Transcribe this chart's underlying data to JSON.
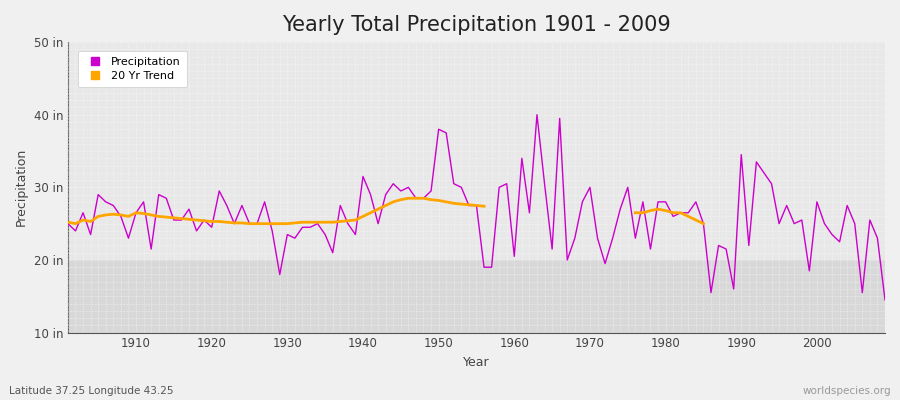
{
  "title": "Yearly Total Precipitation 1901 - 2009",
  "xlabel": "Year",
  "ylabel": "Precipitation",
  "subtitle": "Latitude 37.25 Longitude 43.25",
  "watermark": "worldspecies.org",
  "years": [
    1901,
    1902,
    1903,
    1904,
    1905,
    1906,
    1907,
    1908,
    1909,
    1910,
    1911,
    1912,
    1913,
    1914,
    1915,
    1916,
    1917,
    1918,
    1919,
    1920,
    1921,
    1922,
    1923,
    1924,
    1925,
    1926,
    1927,
    1928,
    1929,
    1930,
    1931,
    1932,
    1933,
    1934,
    1935,
    1936,
    1937,
    1938,
    1939,
    1940,
    1941,
    1942,
    1943,
    1944,
    1945,
    1946,
    1947,
    1948,
    1949,
    1950,
    1951,
    1952,
    1953,
    1954,
    1955,
    1956,
    1957,
    1958,
    1959,
    1960,
    1961,
    1962,
    1963,
    1964,
    1965,
    1966,
    1967,
    1968,
    1969,
    1970,
    1971,
    1972,
    1973,
    1974,
    1975,
    1976,
    1977,
    1978,
    1979,
    1980,
    1981,
    1982,
    1983,
    1984,
    1985,
    1986,
    1987,
    1988,
    1989,
    1990,
    1991,
    1992,
    1993,
    1994,
    1995,
    1996,
    1997,
    1998,
    1999,
    2000,
    2001,
    2002,
    2003,
    2004,
    2005,
    2006,
    2007,
    2008,
    2009
  ],
  "precipitation": [
    25.0,
    24.0,
    26.5,
    23.5,
    29.0,
    28.0,
    27.5,
    26.0,
    23.0,
    26.5,
    28.0,
    21.5,
    29.0,
    28.5,
    25.5,
    25.5,
    27.0,
    24.0,
    25.5,
    24.5,
    29.5,
    27.5,
    25.0,
    27.5,
    25.0,
    25.0,
    28.0,
    24.0,
    18.0,
    23.5,
    23.0,
    24.5,
    24.5,
    25.0,
    23.5,
    21.0,
    27.5,
    25.0,
    23.5,
    31.5,
    29.0,
    25.0,
    29.0,
    30.5,
    29.5,
    30.0,
    28.5,
    28.5,
    29.5,
    38.0,
    37.5,
    30.5,
    30.0,
    27.5,
    27.5,
    19.0,
    19.0,
    30.0,
    30.5,
    20.5,
    34.0,
    26.5,
    40.0,
    30.5,
    21.5,
    39.5,
    20.0,
    23.0,
    28.0,
    30.0,
    23.0,
    19.5,
    23.0,
    27.0,
    30.0,
    23.0,
    28.0,
    21.5,
    28.0,
    28.0,
    26.0,
    26.5,
    26.5,
    28.0,
    25.0,
    15.5,
    22.0,
    21.5,
    16.0,
    34.5,
    22.0,
    33.5,
    32.0,
    30.5,
    25.0,
    27.5,
    25.0,
    25.5,
    18.5,
    28.0,
    25.0,
    23.5,
    22.5,
    27.5,
    25.0,
    15.5,
    25.5,
    23.0,
    14.5
  ],
  "trend_years_1": [
    1901,
    1902,
    1903,
    1904,
    1905,
    1906,
    1907,
    1908,
    1909,
    1910,
    1911,
    1912,
    1913,
    1914,
    1915,
    1916,
    1917,
    1918,
    1919,
    1920,
    1921,
    1922,
    1923,
    1924,
    1925,
    1926,
    1927,
    1928,
    1929,
    1930,
    1931,
    1932,
    1933,
    1934,
    1935,
    1936,
    1937,
    1938,
    1939,
    1940,
    1941,
    1942,
    1943,
    1944,
    1945,
    1946,
    1947,
    1948,
    1949,
    1950,
    1951,
    1952,
    1953,
    1954,
    1955,
    1956
  ],
  "trend_values_1": [
    25.2,
    25.0,
    25.5,
    25.3,
    26.0,
    26.2,
    26.3,
    26.2,
    26.0,
    26.5,
    26.4,
    26.2,
    26.0,
    25.9,
    25.8,
    25.7,
    25.6,
    25.5,
    25.4,
    25.3,
    25.3,
    25.2,
    25.1,
    25.1,
    25.0,
    25.0,
    25.0,
    25.0,
    25.0,
    25.0,
    25.1,
    25.2,
    25.2,
    25.2,
    25.2,
    25.2,
    25.3,
    25.4,
    25.5,
    26.0,
    26.5,
    27.0,
    27.5,
    28.0,
    28.3,
    28.5,
    28.5,
    28.5,
    28.3,
    28.2,
    28.0,
    27.8,
    27.7,
    27.6,
    27.5,
    27.4
  ],
  "trend_years_2": [
    1976,
    1977,
    1978,
    1979,
    1980,
    1981,
    1982,
    1983,
    1984,
    1985
  ],
  "trend_values_2": [
    26.5,
    26.5,
    26.8,
    27.0,
    26.8,
    26.5,
    26.5,
    26.0,
    25.5,
    25.0
  ],
  "precip_color": "#cc00cc",
  "trend_color": "#FFA500",
  "bg_color": "#f0f0f0",
  "plot_bg_color": "#e8e8e8",
  "plot_bg_upper": "#e8e8e8",
  "plot_bg_lower": "#d8d8d8",
  "grid_color": "#ffffff",
  "ylim": [
    10,
    50
  ],
  "yticks": [
    10,
    20,
    30,
    40,
    50
  ],
  "ytick_labels": [
    "10 in",
    "20 in",
    "30 in",
    "40 in",
    "50 in"
  ],
  "xticks": [
    1910,
    1920,
    1930,
    1940,
    1950,
    1960,
    1970,
    1980,
    1990,
    2000
  ],
  "xlim": [
    1901,
    2009
  ],
  "title_fontsize": 15,
  "label_fontsize": 9,
  "tick_fontsize": 8.5
}
